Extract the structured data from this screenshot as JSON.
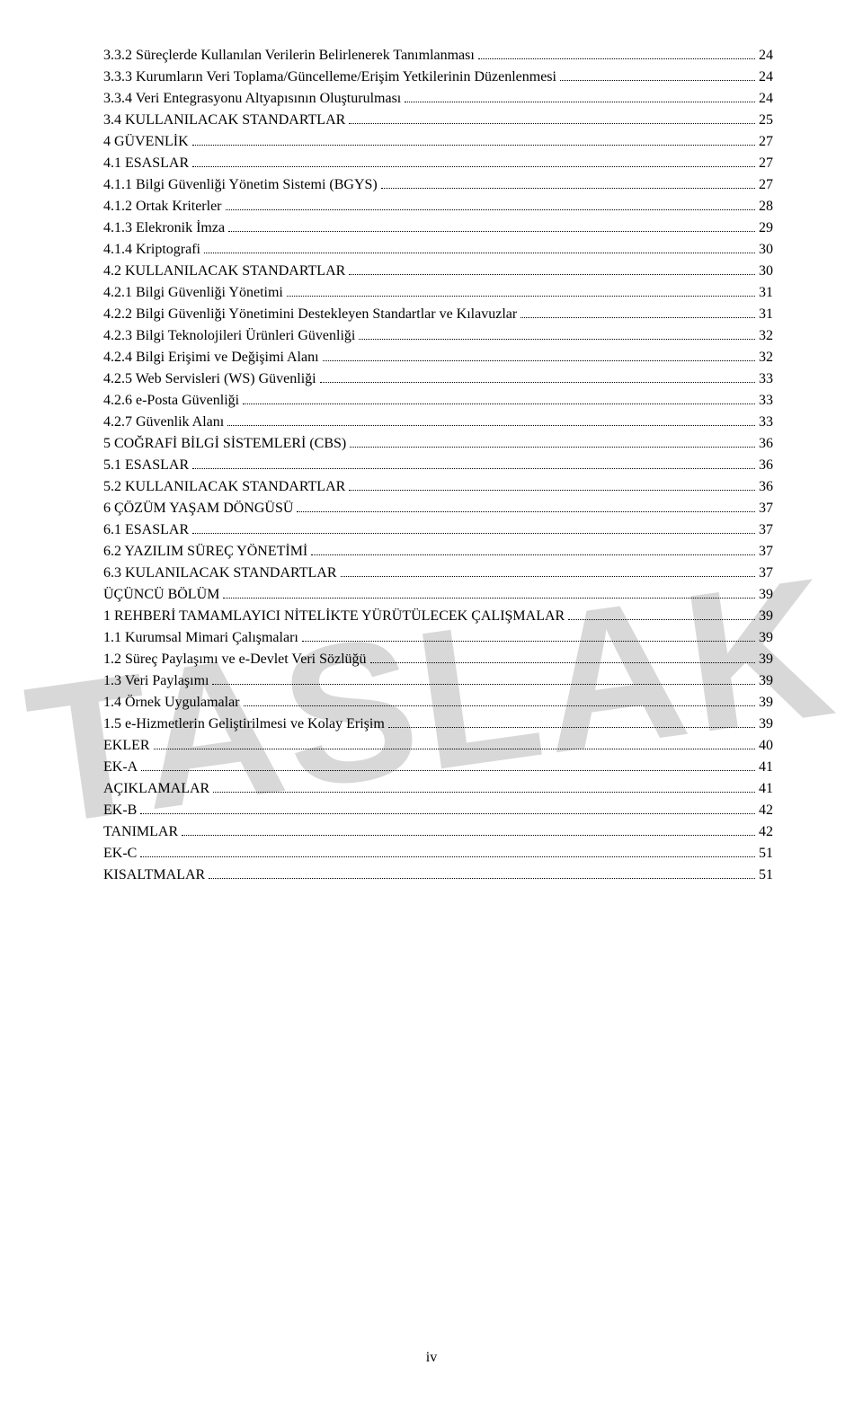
{
  "watermark_text": "TASLAK",
  "watermark_color": "#b3b3b3",
  "page_number": "iv",
  "background_color": "#ffffff",
  "text_color": "#000000",
  "font_family": "Times New Roman",
  "font_size_pt": 12,
  "toc": [
    {
      "label": "3.3.2 Süreçlerde Kullanılan Verilerin Belirlenerek Tanımlanması",
      "page": "24",
      "indent": 0
    },
    {
      "label": "3.3.3 Kurumların Veri Toplama/Güncelleme/Erişim Yetkilerinin Düzenlenmesi",
      "page": "24",
      "indent": 0
    },
    {
      "label": "3.3.4 Veri Entegrasyonu Altyapısının Oluşturulması",
      "page": "24",
      "indent": 0
    },
    {
      "label": "3.4 KULLANILACAK STANDARTLAR",
      "page": "25",
      "indent": 0
    },
    {
      "label": "4 GÜVENLİK",
      "page": "27",
      "indent": 0
    },
    {
      "label": "4.1 ESASLAR",
      "page": "27",
      "indent": 0
    },
    {
      "label": "4.1.1 Bilgi Güvenliği Yönetim Sistemi (BGYS)",
      "page": "27",
      "indent": 0
    },
    {
      "label": "4.1.2 Ortak Kriterler",
      "page": "28",
      "indent": 0
    },
    {
      "label": "4.1.3 Elekronik İmza",
      "page": "29",
      "indent": 0
    },
    {
      "label": "4.1.4 Kriptografi",
      "page": "30",
      "indent": 0
    },
    {
      "label": "4.2 KULLANILACAK STANDARTLAR",
      "page": "30",
      "indent": 0
    },
    {
      "label": "4.2.1 Bilgi Güvenliği Yönetimi",
      "page": "31",
      "indent": 0
    },
    {
      "label": "4.2.2 Bilgi Güvenliği Yönetimini Destekleyen Standartlar ve Kılavuzlar",
      "page": "31",
      "indent": 0
    },
    {
      "label": "4.2.3 Bilgi Teknolojileri Ürünleri Güvenliği",
      "page": "32",
      "indent": 0
    },
    {
      "label": "4.2.4 Bilgi Erişimi ve Değişimi Alanı",
      "page": "32",
      "indent": 0
    },
    {
      "label": "4.2.5 Web Servisleri (WS) Güvenliği",
      "page": "33",
      "indent": 0
    },
    {
      "label": "4.2.6 e-Posta Güvenliği",
      "page": "33",
      "indent": 0
    },
    {
      "label": "4.2.7 Güvenlik Alanı",
      "page": "33",
      "indent": 0
    },
    {
      "label": "5 COĞRAFİ BİLGİ SİSTEMLERİ (CBS)",
      "page": "36",
      "indent": 0
    },
    {
      "label": "5.1 ESASLAR",
      "page": "36",
      "indent": 0
    },
    {
      "label": "5.2 KULLANILACAK STANDARTLAR",
      "page": "36",
      "indent": 0
    },
    {
      "label": "6 ÇÖZÜM YAŞAM DÖNGÜSÜ",
      "page": "37",
      "indent": 0
    },
    {
      "label": "6.1 ESASLAR",
      "page": "37",
      "indent": 0
    },
    {
      "label": "6.2 YAZILIM SÜREÇ YÖNETİMİ",
      "page": "37",
      "indent": 0
    },
    {
      "label": "6.3 KULANILACAK STANDARTLAR",
      "page": "37",
      "indent": 0
    },
    {
      "label": "ÜÇÜNCÜ BÖLÜM",
      "page": "39",
      "indent": 0
    },
    {
      "label": "1 REHBERİ TAMAMLAYICI NİTELİKTE YÜRÜTÜLECEK ÇALIŞMALAR",
      "page": "39",
      "indent": 0
    },
    {
      "label": "1.1 Kurumsal Mimari Çalışmaları",
      "page": "39",
      "indent": 0
    },
    {
      "label": "1.2 Süreç Paylaşımı ve e-Devlet Veri Sözlüğü",
      "page": "39",
      "indent": 0
    },
    {
      "label": "1.3 Veri Paylaşımı",
      "page": "39",
      "indent": 0
    },
    {
      "label": "1.4 Örnek Uygulamalar",
      "page": "39",
      "indent": 0
    },
    {
      "label": "1.5 e-Hizmetlerin Geliştirilmesi ve Kolay Erişim",
      "page": "39",
      "indent": 0
    },
    {
      "label": "EKLER",
      "page": "40",
      "indent": 0
    },
    {
      "label": "EK-A",
      "page": "41",
      "indent": 0
    },
    {
      "label": "AÇIKLAMALAR",
      "page": "41",
      "indent": 0
    },
    {
      "label": "EK-B",
      "page": "42",
      "indent": 0
    },
    {
      "label": "TANIMLAR",
      "page": "42",
      "indent": 0
    },
    {
      "label": "EK-C",
      "page": "51",
      "indent": 0
    },
    {
      "label": "KISALTMALAR",
      "page": "51",
      "indent": 0
    }
  ]
}
